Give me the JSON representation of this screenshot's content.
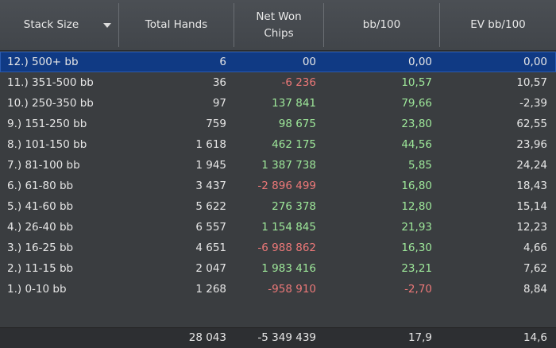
{
  "columns": [
    {
      "label": "Stack Size"
    },
    {
      "label": "Total Hands"
    },
    {
      "label": "Net Won Chips"
    },
    {
      "label": "bb/100"
    },
    {
      "label": "EV bb/100"
    }
  ],
  "rows": [
    {
      "stack": "12.) 500+ bb",
      "hands": "6",
      "net": "00",
      "net_sign": "neu",
      "bb100": "0,00",
      "bb_sign": "neu",
      "ev": "0,00",
      "selected": true
    },
    {
      "stack": "11.) 351-500 bb",
      "hands": "36",
      "net": "-6 236",
      "net_sign": "neg",
      "bb100": "10,57",
      "bb_sign": "pos",
      "ev": "10,57"
    },
    {
      "stack": "10.) 250-350 bb",
      "hands": "97",
      "net": "137 841",
      "net_sign": "pos",
      "bb100": "79,66",
      "bb_sign": "pos",
      "ev": "-2,39"
    },
    {
      "stack": "9.) 151-250 bb",
      "hands": "759",
      "net": "98 675",
      "net_sign": "pos",
      "bb100": "23,80",
      "bb_sign": "pos",
      "ev": "62,55"
    },
    {
      "stack": "8.) 101-150 bb",
      "hands": "1 618",
      "net": "462 175",
      "net_sign": "pos",
      "bb100": "44,56",
      "bb_sign": "pos",
      "ev": "23,96"
    },
    {
      "stack": "7.) 81-100 bb",
      "hands": "1 945",
      "net": "1 387 738",
      "net_sign": "pos",
      "bb100": "5,85",
      "bb_sign": "pos",
      "ev": "24,24"
    },
    {
      "stack": "6.) 61-80 bb",
      "hands": "3 437",
      "net": "-2 896 499",
      "net_sign": "neg",
      "bb100": "16,80",
      "bb_sign": "pos",
      "ev": "18,43"
    },
    {
      "stack": "5.) 41-60 bb",
      "hands": "5 622",
      "net": "276 378",
      "net_sign": "pos",
      "bb100": "12,80",
      "bb_sign": "pos",
      "ev": "15,14"
    },
    {
      "stack": "4.) 26-40 bb",
      "hands": "6 557",
      "net": "1 154 845",
      "net_sign": "pos",
      "bb100": "21,93",
      "bb_sign": "pos",
      "ev": "12,23"
    },
    {
      "stack": "3.) 16-25 bb",
      "hands": "4 651",
      "net": "-6 988 862",
      "net_sign": "neg",
      "bb100": "16,30",
      "bb_sign": "pos",
      "ev": "4,66"
    },
    {
      "stack": "2.) 11-15 bb",
      "hands": "2 047",
      "net": "1 983 416",
      "net_sign": "pos",
      "bb100": "23,21",
      "bb_sign": "pos",
      "ev": "7,62"
    },
    {
      "stack": "1.) 0-10 bb",
      "hands": "1 268",
      "net": "-958 910",
      "net_sign": "neg",
      "bb100": "-2,70",
      "bb_sign": "neg",
      "ev": "8,84"
    }
  ],
  "totals": {
    "hands": "28 043",
    "net": "-5 349 439",
    "bb100": "17,9",
    "ev": "14,6"
  },
  "colors": {
    "positive": "#9ee89a",
    "negative": "#ec7878",
    "selected_row": "#103a84",
    "background": "#3a3d40"
  },
  "icons": {
    "sort": "chevron-down-icon"
  }
}
